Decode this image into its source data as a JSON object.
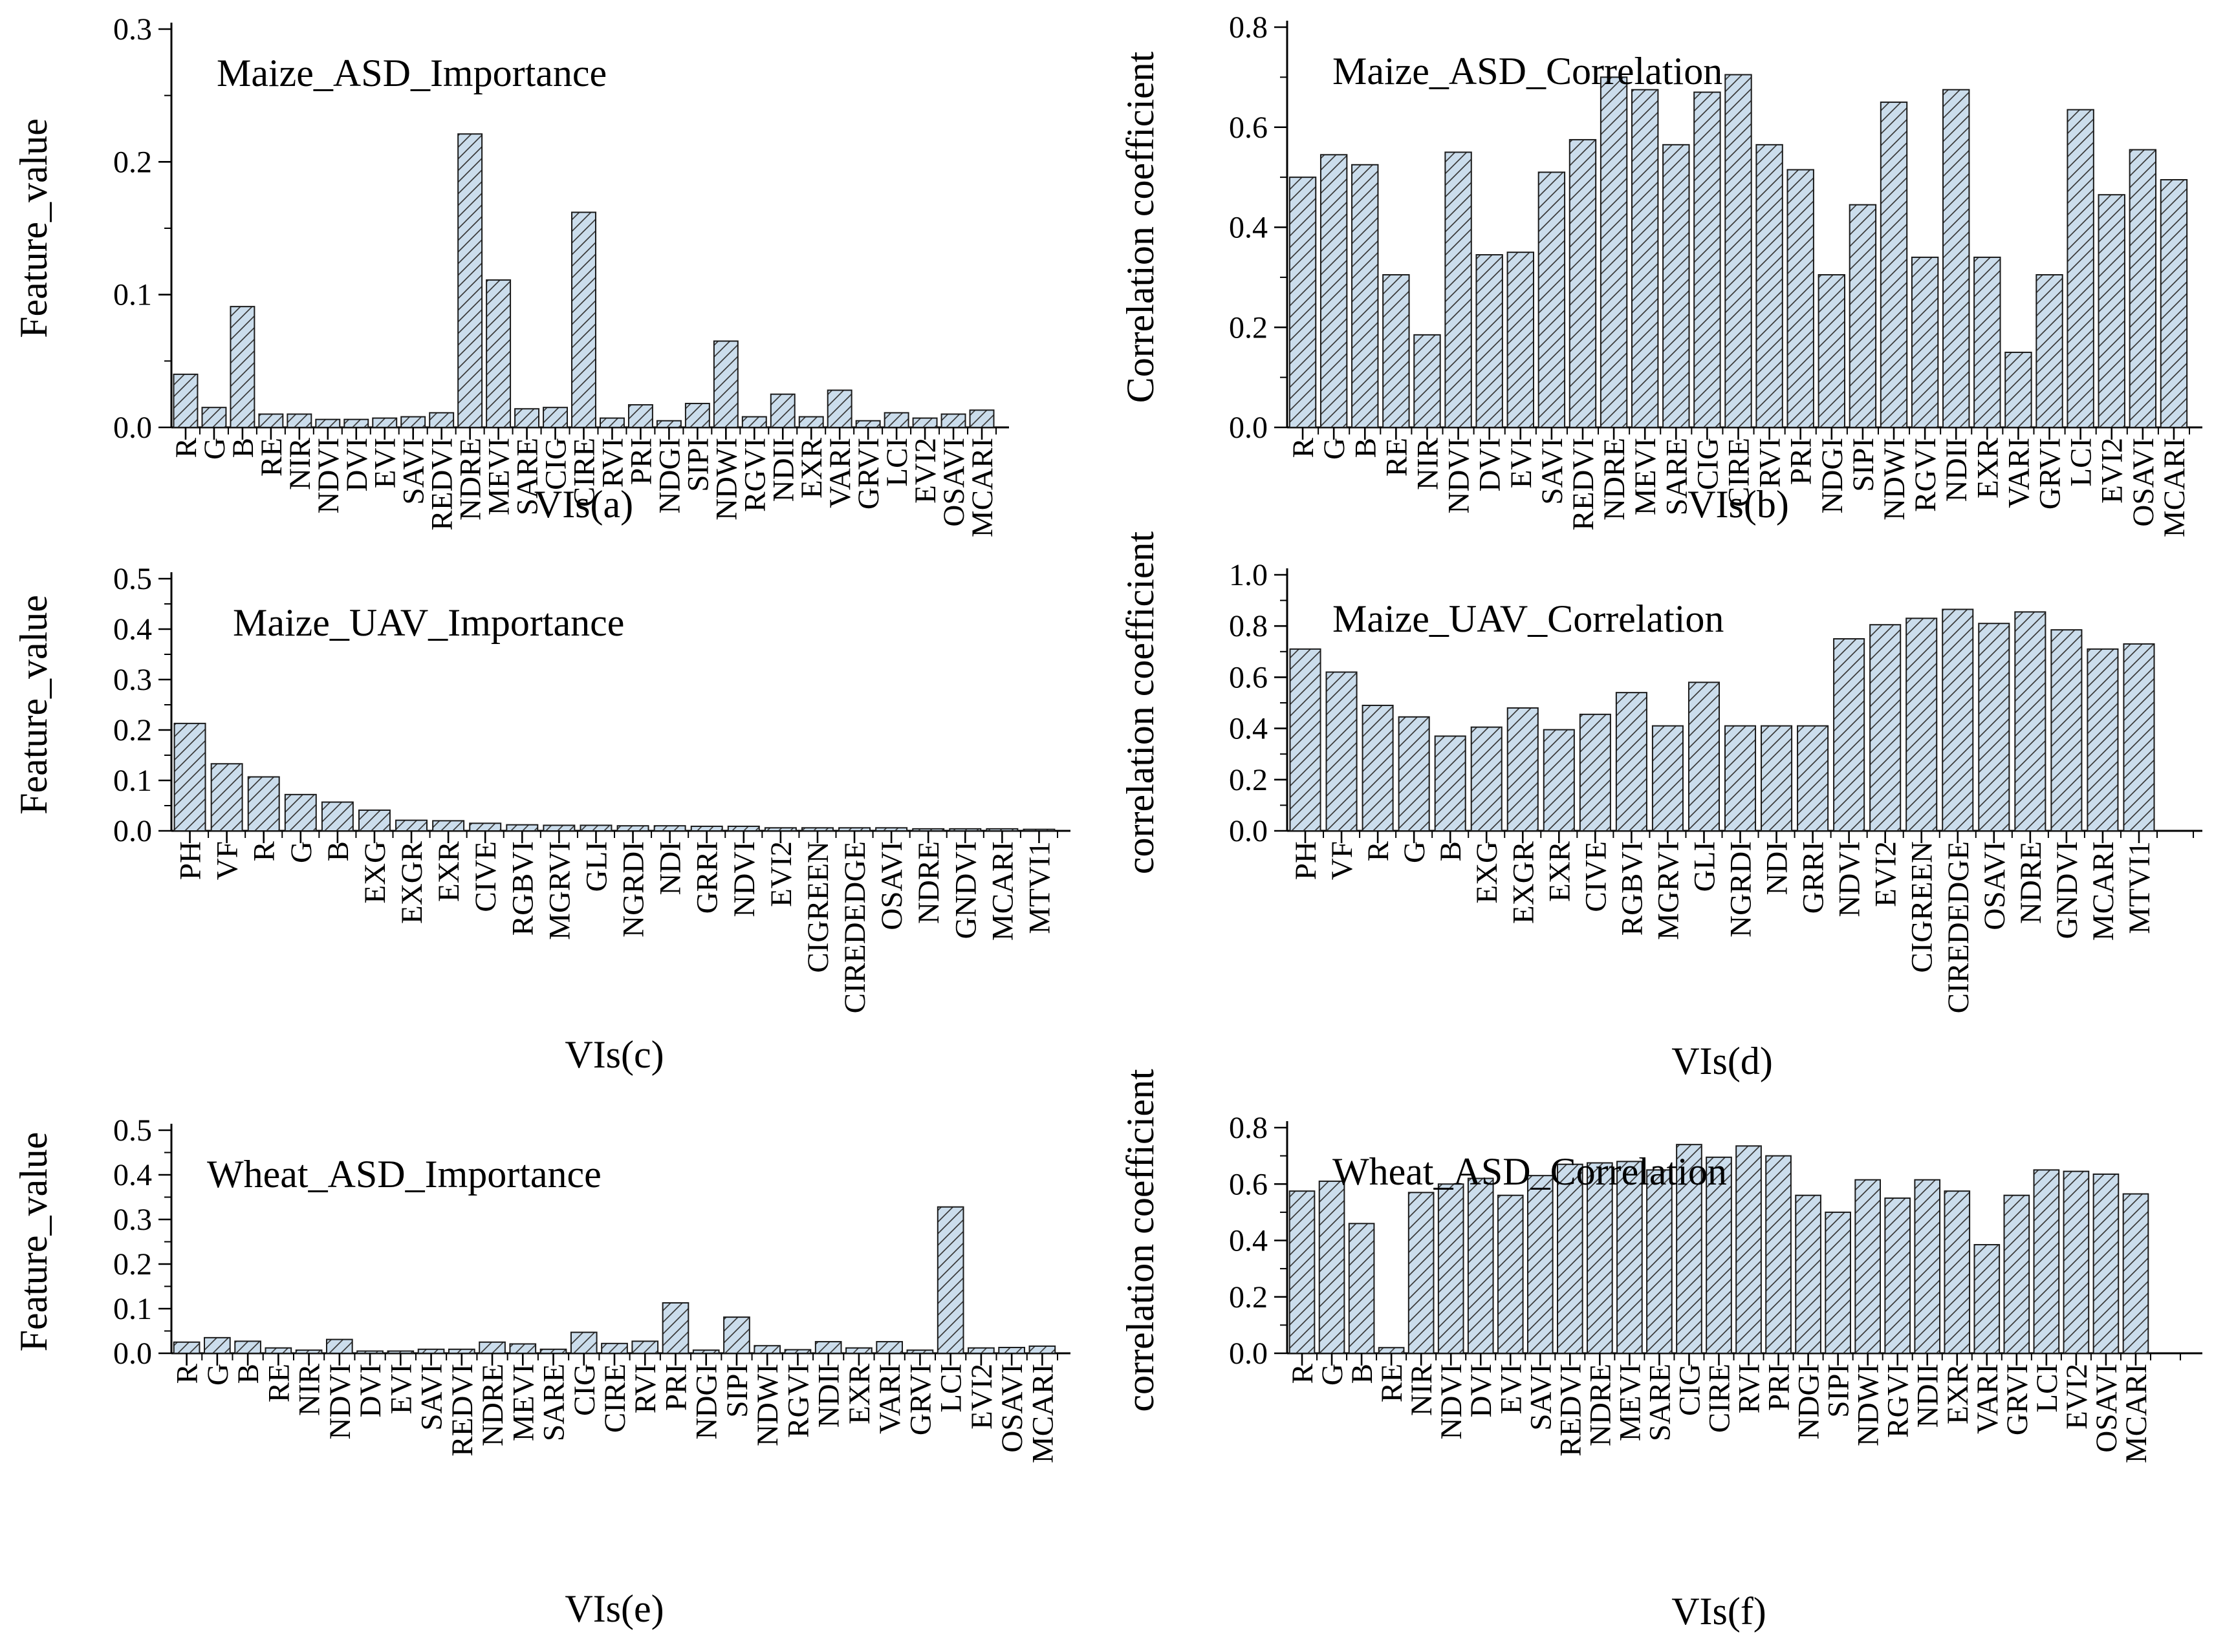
{
  "figure": {
    "background": "#ffffff",
    "bar_fill": "#cbddec",
    "bar_edge": "#1a1a1a",
    "hatch_color": "#3a3a3a",
    "text_color": "#000000"
  },
  "chart_data": [
    {
      "type": "bar",
      "panel": "a",
      "title": "Maize_ASD_Importance",
      "ylabel": "Feature_value",
      "xlabel": "VIs(a)",
      "ylim": [
        0,
        0.3
      ],
      "y_major_labels": [
        "0.0",
        "0.1",
        "0.2",
        "0.3"
      ],
      "y_minor_step": 0.05,
      "grid": false,
      "categories": [
        "R",
        "G",
        "B",
        "RE",
        "NIR",
        "NDVI",
        "DVI",
        "EVI",
        "SAVI",
        "REDVI",
        "NDRE",
        "MEVI",
        "SARE",
        "CIG",
        "CIRE",
        "RVI",
        "PRI",
        "NDGI",
        "SIPI",
        "NDWI",
        "RGVI",
        "NDII",
        "EXR",
        "VARI",
        "GRVI",
        "LCI",
        "EVI2",
        "OSAVI",
        "MCARI"
      ],
      "values": [
        0.04,
        0.015,
        0.091,
        0.01,
        0.01,
        0.006,
        0.006,
        0.007,
        0.008,
        0.011,
        0.221,
        0.111,
        0.014,
        0.015,
        0.162,
        0.007,
        0.017,
        0.005,
        0.018,
        0.065,
        0.008,
        0.025,
        0.008,
        0.028,
        0.005,
        0.011,
        0.007,
        0.01,
        0.013
      ]
    },
    {
      "type": "bar",
      "panel": "b",
      "title": "Maize_ASD_Correlation",
      "ylabel": "Correlation coefficient",
      "xlabel": "VIs(b)",
      "ylim": [
        0,
        0.8
      ],
      "y_major_labels": [
        "0.0",
        "0.2",
        "0.4",
        "0.6",
        "0.8"
      ],
      "y_minor_step": 0.1,
      "grid": false,
      "categories": [
        "R",
        "G",
        "B",
        "RE",
        "NIR",
        "NDVI",
        "DVI",
        "EVI",
        "SAVI",
        "REDVI",
        "NDRE",
        "MEVI",
        "SARE",
        "CIG",
        "CIRE",
        "RVI",
        "PRI",
        "NDGI",
        "SIPI",
        "NDWI",
        "RGVI",
        "NDII",
        "EXR",
        "VARI",
        "GRVI",
        "LCI",
        "EVI2",
        "OSAVI",
        "MCARI"
      ],
      "values": [
        0.5,
        0.545,
        0.525,
        0.305,
        0.185,
        0.55,
        0.345,
        0.35,
        0.51,
        0.575,
        0.7,
        0.675,
        0.565,
        0.67,
        0.705,
        0.565,
        0.515,
        0.305,
        0.445,
        0.65,
        0.34,
        0.675,
        0.34,
        0.15,
        0.305,
        0.635,
        0.465,
        0.555,
        0.495
      ]
    },
    {
      "type": "bar",
      "panel": "c",
      "title": "Maize_UAV_Importance",
      "ylabel": "Feature_value",
      "xlabel": "VIs(c)",
      "ylim": [
        0,
        0.5
      ],
      "y_major_labels": [
        "0.0",
        "0.1",
        "0.2",
        "0.3",
        "0.4",
        "0.5"
      ],
      "y_minor_step": 0.05,
      "grid": false,
      "categories": [
        "PH",
        "VF",
        "R",
        "G",
        "B",
        "EXG",
        "EXGR",
        "EXR",
        "CIVE",
        "RGBVI",
        "MGRVI",
        "GLI",
        "NGRDI",
        "NDI",
        "GRRI",
        "NDVI",
        "EVI2",
        "CIGREEN",
        "CIREDEDGE",
        "OSAVI",
        "NDRE",
        "GNDVI",
        "MCARI",
        "MTVI1"
      ],
      "values": [
        0.213,
        0.133,
        0.107,
        0.072,
        0.057,
        0.041,
        0.021,
        0.02,
        0.015,
        0.012,
        0.011,
        0.011,
        0.01,
        0.01,
        0.009,
        0.009,
        0.006,
        0.006,
        0.006,
        0.006,
        0.004,
        0.004,
        0.004,
        0.003
      ]
    },
    {
      "type": "bar",
      "panel": "d",
      "title": "Maize_UAV_Correlation",
      "ylabel": "correlation coefficient",
      "xlabel": "VIs(d)",
      "ylim": [
        0,
        1.0
      ],
      "y_major_labels": [
        "0.0",
        "0.2",
        "0.4",
        "0.6",
        "0.8",
        "1.0"
      ],
      "y_minor_step": 0.1,
      "grid": false,
      "categories": [
        "PH",
        "VF",
        "R",
        "G",
        "B",
        "EXG",
        "EXGR",
        "EXR",
        "CIVE",
        "RGBVI",
        "MGRVI",
        "GLI",
        "NGRDI",
        "NDI",
        "GRRI",
        "NDVI",
        "EVI2",
        "CIGREEN",
        "CIREDEDGE",
        "OSAVI",
        "NDRE",
        "GNDVI",
        "MCARI",
        "MTVI1"
      ],
      "values": [
        0.71,
        0.62,
        0.49,
        0.445,
        0.37,
        0.405,
        0.48,
        0.395,
        0.455,
        0.54,
        0.41,
        0.58,
        0.41,
        0.41,
        0.41,
        0.75,
        0.805,
        0.83,
        0.865,
        0.81,
        0.855,
        0.785,
        0.71,
        0.73
      ]
    },
    {
      "type": "bar",
      "panel": "e",
      "title": "Wheat_ASD_Importance",
      "ylabel": "Feature_value",
      "xlabel": "VIs(e)",
      "ylim": [
        0,
        0.5
      ],
      "y_major_labels": [
        "0.0",
        "0.1",
        "0.2",
        "0.3",
        "0.4",
        "0.5"
      ],
      "y_minor_step": 0.05,
      "grid": false,
      "categories": [
        "R",
        "G",
        "B",
        "RE",
        "NIR",
        "NDVI",
        "DVI",
        "EVI",
        "SAVI",
        "REDVI",
        "NDRE",
        "MEVI",
        "SARE",
        "CIG",
        "CIRE",
        "RVI",
        "PRI",
        "NDGI",
        "SIPI",
        "NDWI",
        "RGVI",
        "NDII",
        "EXR",
        "VARI",
        "GRVI",
        "LCI",
        "EVI2",
        "OSAVI",
        "MCARI"
      ],
      "values": [
        0.025,
        0.035,
        0.027,
        0.012,
        0.007,
        0.031,
        0.005,
        0.005,
        0.009,
        0.009,
        0.025,
        0.021,
        0.009,
        0.047,
        0.022,
        0.027,
        0.113,
        0.007,
        0.081,
        0.017,
        0.008,
        0.026,
        0.012,
        0.026,
        0.007,
        0.328,
        0.012,
        0.013,
        0.016
      ]
    },
    {
      "type": "bar",
      "panel": "f",
      "title": "Wheat_ASD_Correlation",
      "ylabel": "correlation coefficient",
      "xlabel": "VIs(f)",
      "ylim": [
        0,
        0.8
      ],
      "y_major_labels": [
        "0.0",
        "0.2",
        "0.4",
        "0.6",
        "0.8"
      ],
      "y_minor_step": 0.1,
      "grid": false,
      "categories": [
        "R",
        "G",
        "B",
        "RE",
        "NIR",
        "NDVI",
        "DVI",
        "EVI",
        "SAVI",
        "REDVI",
        "NDRE",
        "MEVI",
        "SARE",
        "CIG",
        "CIRE",
        "RVI",
        "PRI",
        "NDGI",
        "SIPI",
        "NDWI",
        "RGVI",
        "NDII",
        "EXR",
        "VARI",
        "GRVI",
        "LCI",
        "EVI2",
        "OSAVI",
        "MCARI"
      ],
      "values": [
        0.575,
        0.61,
        0.46,
        0.02,
        0.57,
        0.6,
        0.62,
        0.56,
        0.63,
        0.67,
        0.675,
        0.68,
        0.65,
        0.74,
        0.695,
        0.735,
        0.7,
        0.56,
        0.5,
        0.615,
        0.55,
        0.615,
        0.575,
        0.385,
        0.56,
        0.65,
        0.645,
        0.635,
        0.565
      ]
    }
  ]
}
